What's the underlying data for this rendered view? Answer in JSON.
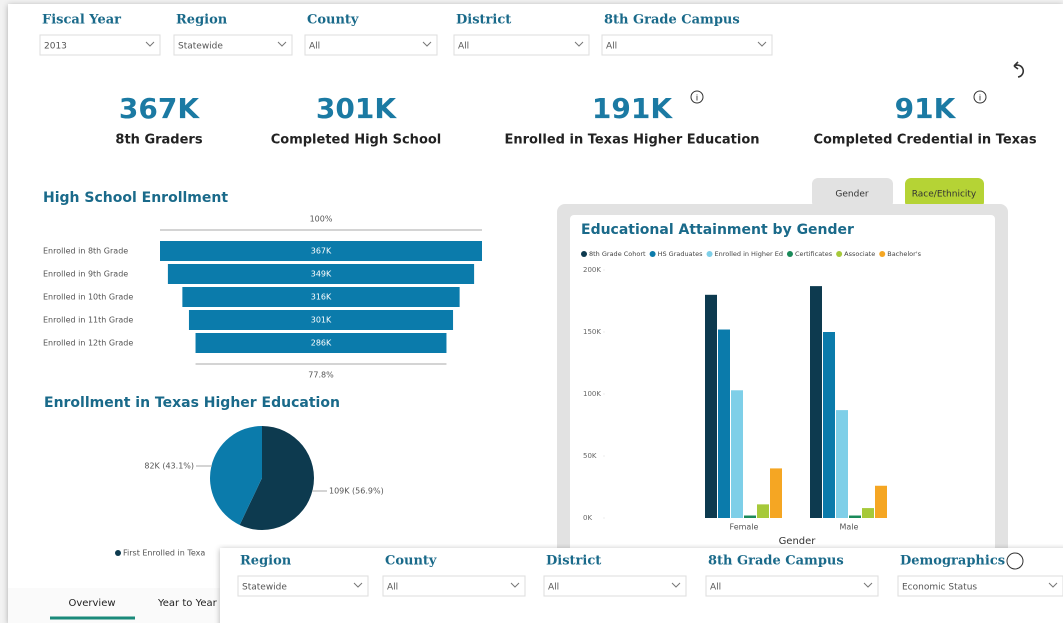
{
  "filters": [
    {
      "label": "Fiscal Year",
      "value": "2013"
    },
    {
      "label": "Region",
      "value": "Statewide"
    },
    {
      "label": "County",
      "value": "All"
    },
    {
      "label": "District",
      "value": "All"
    },
    {
      "label": "8th Grade Campus",
      "value": "All"
    }
  ],
  "kpis": [
    {
      "value": "367K",
      "label": "8th Graders"
    },
    {
      "value": "301K",
      "label": "Completed High School"
    },
    {
      "value": "191K",
      "label": "Enrolled in Texas Higher Education"
    },
    {
      "value": "91K",
      "label": "Completed Credential in Texas"
    }
  ],
  "funnel": {
    "type": "funnel",
    "title": "High School Enrollment",
    "top_label": "100%",
    "bottom_label": "77.8%",
    "categories": [
      "Enrolled in 8th Grade",
      "Enrolled in 9th Grade",
      "Enrolled in 10th Grade",
      "Enrolled in 11th Grade",
      "Enrolled in 12th Grade"
    ],
    "values": [
      367000,
      349000,
      316000,
      301000,
      286000
    ],
    "value_labels": [
      "367K",
      "349K",
      "316K",
      "301K",
      "286K"
    ],
    "color": "#0b7bab"
  },
  "pie": {
    "type": "pie",
    "title": "Enrollment in Texas Higher Education",
    "values": [
      82000,
      109000
    ],
    "value_labels": [
      "82K (43.1%)",
      "109K (56.9%)"
    ],
    "colors": [
      "#0b7bab",
      "#0d3a4f"
    ],
    "legend": "First Enrolled in Texa"
  },
  "tabs": [
    "Gender",
    "Race/Ethnicity"
  ],
  "chart_data": {
    "type": "bar",
    "title": "Educational Attainment by Gender",
    "categories": [
      "Female",
      "Male"
    ],
    "x_label": "Gender",
    "series": [
      {
        "name": "8th Grade Cohort",
        "color": "#0d3a4f",
        "values": [
          180000,
          187000
        ]
      },
      {
        "name": "HS Graduates",
        "color": "#0b7bab",
        "values": [
          152000,
          150000
        ]
      },
      {
        "name": "Enrolled in Higher Ed",
        "color": "#7ecfe8",
        "values": [
          103000,
          87000
        ]
      },
      {
        "name": "Certificates",
        "color": "#1a8a5a",
        "values": [
          2000,
          2000
        ]
      },
      {
        "name": "Associate",
        "color": "#a6c93a",
        "values": [
          11000,
          8000
        ]
      },
      {
        "name": "Bachelor's",
        "color": "#f5a623",
        "values": [
          40000,
          26000
        ]
      }
    ],
    "ylim": [
      0,
      200000
    ],
    "yticks": [
      {
        "value": 0,
        "label": "0K"
      },
      {
        "value": 50000,
        "label": "50K"
      },
      {
        "value": 100000,
        "label": "100K"
      },
      {
        "value": 150000,
        "label": "150K"
      },
      {
        "value": 200000,
        "label": "200K"
      }
    ]
  },
  "overlay_filters": [
    {
      "label": "Region",
      "value": "Statewide"
    },
    {
      "label": "County",
      "value": "All"
    },
    {
      "label": "District",
      "value": "All"
    },
    {
      "label": "8th Grade Campus",
      "value": "All"
    },
    {
      "label": "Demographics",
      "value": "Economic Status"
    }
  ],
  "pages": [
    "Overview",
    "Year to Year"
  ]
}
